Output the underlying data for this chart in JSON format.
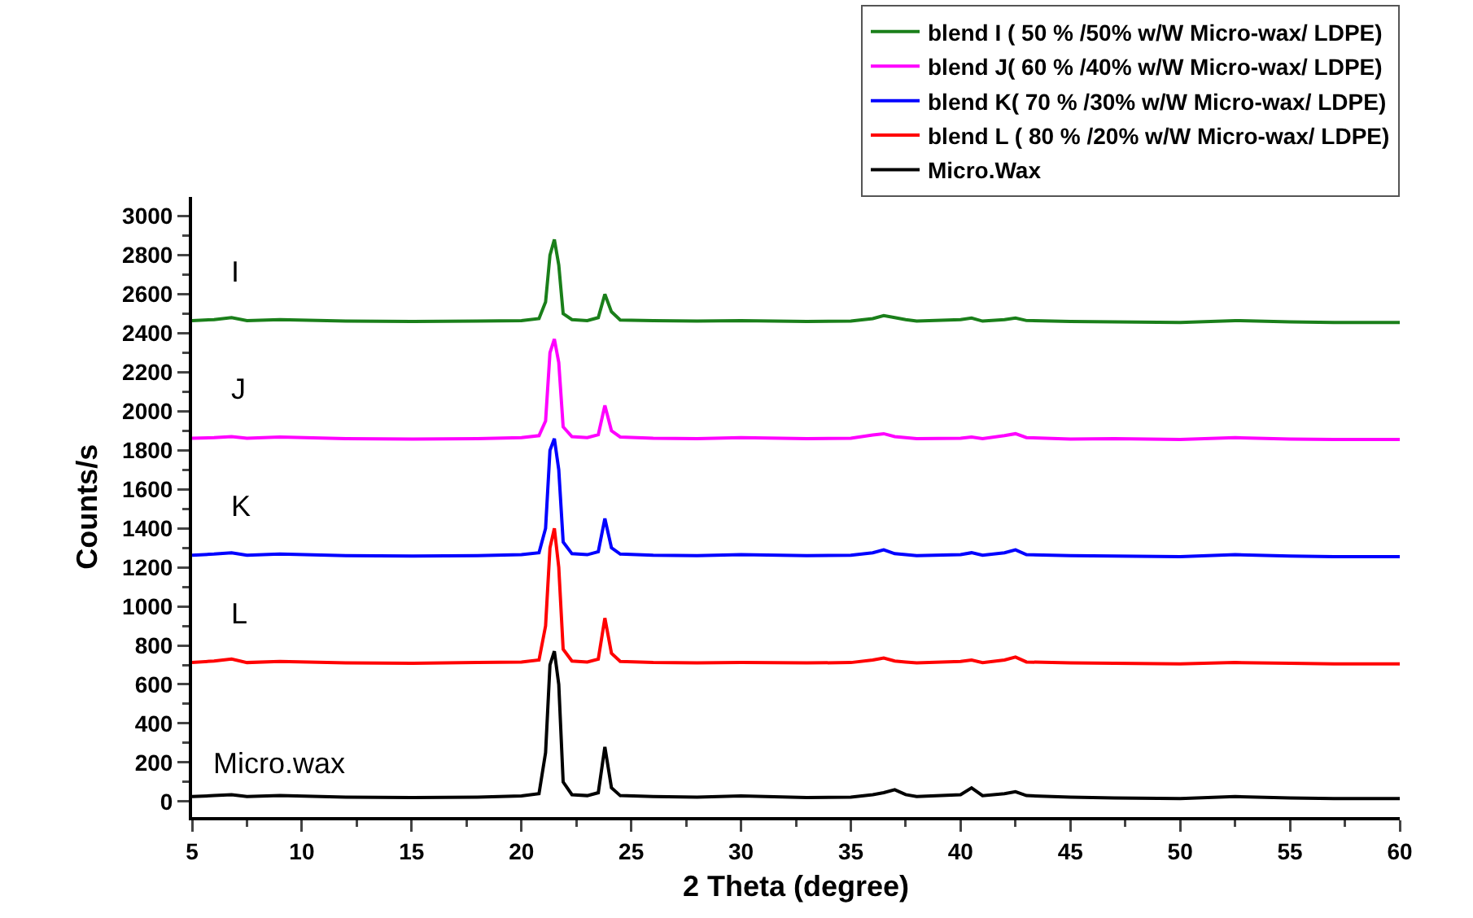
{
  "chart_data": {
    "type": "line",
    "xlabel": "2 Theta (degree)",
    "ylabel": "Counts/s",
    "x": [
      5,
      6,
      6.8,
      7.5,
      9,
      12,
      15,
      18,
      20,
      20.8,
      21.1,
      21.3,
      21.5,
      21.7,
      21.9,
      22.3,
      23,
      23.5,
      23.8,
      24.1,
      24.5,
      26,
      28,
      30,
      33,
      35,
      36,
      36.5,
      37,
      37.5,
      38,
      40,
      40.5,
      41,
      42,
      42.5,
      43,
      45,
      47,
      50,
      52.5,
      55,
      57,
      60
    ],
    "series": [
      {
        "name": "blend I ( 50 % /50% w/W Micro-wax/ LDPE)",
        "color": "#1a7f1a",
        "values": [
          2465,
          2470,
          2480,
          2465,
          2470,
          2462,
          2460,
          2462,
          2465,
          2475,
          2560,
          2800,
          2880,
          2750,
          2500,
          2470,
          2465,
          2480,
          2600,
          2510,
          2468,
          2465,
          2462,
          2465,
          2460,
          2462,
          2475,
          2490,
          2480,
          2470,
          2462,
          2470,
          2478,
          2462,
          2470,
          2478,
          2465,
          2460,
          2458,
          2455,
          2465,
          2458,
          2455,
          2455
        ]
      },
      {
        "name": "blend J( 60 % /40% w/W Micro-wax/ LDPE)",
        "color": "#ff00ff",
        "values": [
          1862,
          1865,
          1870,
          1862,
          1868,
          1860,
          1858,
          1860,
          1865,
          1875,
          1950,
          2300,
          2370,
          2250,
          1920,
          1870,
          1865,
          1880,
          2030,
          1900,
          1868,
          1862,
          1860,
          1865,
          1860,
          1862,
          1878,
          1885,
          1870,
          1865,
          1860,
          1862,
          1868,
          1860,
          1875,
          1885,
          1865,
          1858,
          1860,
          1855,
          1865,
          1858,
          1855,
          1855
        ]
      },
      {
        "name": "blend K( 70 % /30% w/W Micro-wax/ LDPE)",
        "color": "#0000ff",
        "values": [
          1262,
          1268,
          1275,
          1262,
          1268,
          1260,
          1258,
          1260,
          1265,
          1275,
          1400,
          1800,
          1860,
          1700,
          1330,
          1270,
          1265,
          1280,
          1450,
          1300,
          1268,
          1262,
          1260,
          1265,
          1260,
          1262,
          1275,
          1290,
          1270,
          1265,
          1260,
          1265,
          1275,
          1262,
          1275,
          1290,
          1265,
          1260,
          1258,
          1255,
          1265,
          1258,
          1255,
          1255
        ]
      },
      {
        "name": "blend L ( 80 % /20% w/W Micro-wax/ LDPE)",
        "color": "#ff0000",
        "values": [
          712,
          720,
          730,
          712,
          718,
          710,
          708,
          712,
          715,
          725,
          900,
          1300,
          1400,
          1200,
          780,
          720,
          715,
          730,
          940,
          760,
          718,
          712,
          710,
          712,
          710,
          712,
          725,
          735,
          720,
          715,
          710,
          718,
          725,
          712,
          725,
          740,
          715,
          710,
          708,
          705,
          712,
          708,
          705,
          705
        ]
      },
      {
        "name": "Micro.Wax",
        "color": "#000000",
        "values": [
          25,
          30,
          35,
          25,
          30,
          22,
          20,
          22,
          28,
          40,
          250,
          700,
          770,
          600,
          100,
          35,
          30,
          45,
          280,
          70,
          30,
          25,
          22,
          28,
          20,
          22,
          35,
          45,
          60,
          35,
          25,
          35,
          70,
          30,
          40,
          50,
          30,
          22,
          18,
          15,
          25,
          18,
          15,
          15
        ]
      }
    ],
    "annotations": [
      "I",
      "J",
      "K",
      "L",
      "Micro.wax"
    ],
    "xlim": [
      5,
      60
    ],
    "xticks": [
      5,
      10,
      15,
      20,
      25,
      30,
      35,
      40,
      45,
      50,
      55,
      60
    ],
    "ylim": [
      -80,
      3100
    ],
    "yticks": [
      0,
      200,
      400,
      600,
      800,
      1000,
      1200,
      1400,
      1600,
      1800,
      2000,
      2200,
      2400,
      2600,
      2800,
      3000
    ],
    "grid": false,
    "legend": "top right",
    "marker": "none",
    "line_style": "solid"
  }
}
